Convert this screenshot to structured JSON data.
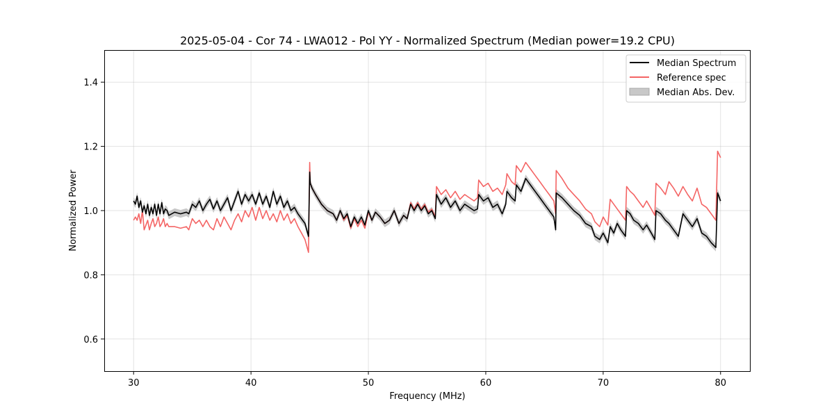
{
  "chart_data": {
    "type": "line",
    "title": "2025-05-04 - Cor 74 - LWA012 - Pol YY - Normalized Spectrum (Median power=19.2 CPU)",
    "xlabel": "Frequency (MHz)",
    "ylabel": "Normalized Power",
    "xlim": [
      27.5,
      82.5
    ],
    "ylim": [
      0.5,
      1.5
    ],
    "xticks": [
      30,
      40,
      50,
      60,
      70,
      80
    ],
    "yticks": [
      0.6,
      0.8,
      1.0,
      1.2,
      1.4
    ],
    "xtick_labels": [
      "30",
      "40",
      "50",
      "60",
      "70",
      "80"
    ],
    "ytick_labels": [
      "0.6",
      "0.8",
      "1.0",
      "1.2",
      "1.4"
    ],
    "grid": true,
    "legend_position": "top-right",
    "mad_halfwidth": 0.012,
    "series": [
      {
        "name": "Median Spectrum",
        "color": "#000000",
        "x": [
          30.0,
          30.15,
          30.3,
          30.45,
          30.6,
          30.75,
          30.9,
          31.05,
          31.2,
          31.35,
          31.5,
          31.65,
          31.8,
          31.95,
          32.1,
          32.25,
          32.4,
          32.55,
          32.7,
          32.85,
          33.0,
          33.5,
          34.0,
          34.5,
          34.7,
          35.0,
          35.3,
          35.6,
          35.9,
          36.2,
          36.5,
          36.8,
          37.1,
          37.4,
          37.7,
          38.0,
          38.3,
          38.6,
          38.9,
          39.2,
          39.5,
          39.8,
          40.1,
          40.4,
          40.7,
          41.0,
          41.3,
          41.6,
          41.9,
          42.2,
          42.5,
          42.8,
          43.1,
          43.4,
          43.7,
          44.0,
          44.3,
          44.6,
          44.9,
          45.0,
          45.05,
          45.2,
          45.5,
          46.0,
          46.5,
          47.0,
          47.3,
          47.6,
          47.9,
          48.2,
          48.5,
          48.8,
          49.1,
          49.4,
          49.7,
          50.0,
          50.3,
          50.6,
          51.0,
          51.4,
          51.8,
          52.2,
          52.6,
          53.0,
          53.3,
          53.6,
          53.9,
          54.2,
          54.5,
          54.8,
          55.1,
          55.4,
          55.7,
          55.8,
          56.2,
          56.6,
          57.0,
          57.4,
          57.8,
          58.2,
          58.6,
          59.0,
          59.3,
          59.4,
          59.8,
          60.2,
          60.6,
          61.0,
          61.4,
          61.7,
          61.8,
          62.2,
          62.5,
          62.6,
          63.0,
          63.4,
          63.8,
          64.2,
          64.6,
          65.0,
          65.4,
          65.8,
          65.95,
          66.0,
          66.5,
          67.0,
          67.5,
          68.0,
          68.5,
          69.0,
          69.3,
          69.7,
          70.0,
          70.4,
          70.6,
          70.9,
          71.2,
          71.5,
          71.9,
          72.0,
          72.3,
          72.6,
          73.0,
          73.4,
          73.7,
          74.1,
          74.4,
          74.5,
          74.9,
          75.3,
          75.6,
          76.0,
          76.4,
          76.8,
          77.2,
          77.6,
          78.0,
          78.4,
          78.8,
          79.2,
          79.6,
          79.75,
          80.0
        ],
        "values": [
          1.03,
          1.02,
          1.045,
          1.01,
          1.03,
          0.995,
          1.015,
          0.99,
          1.02,
          0.985,
          1.01,
          0.99,
          1.02,
          0.985,
          1.02,
          0.99,
          1.025,
          0.99,
          1.005,
          1.0,
          0.985,
          0.995,
          0.99,
          0.995,
          0.99,
          1.02,
          1.01,
          1.03,
          1.0,
          1.02,
          1.035,
          1.005,
          1.03,
          1.0,
          1.02,
          1.04,
          1.0,
          1.03,
          1.06,
          1.02,
          1.05,
          1.03,
          1.05,
          1.02,
          1.055,
          1.02,
          1.045,
          1.01,
          1.06,
          1.02,
          1.045,
          1.01,
          1.03,
          1.0,
          1.01,
          0.99,
          0.975,
          0.96,
          0.92,
          1.12,
          1.085,
          1.07,
          1.05,
          1.02,
          1.0,
          0.99,
          0.97,
          1.0,
          0.975,
          0.99,
          0.95,
          0.98,
          0.96,
          0.98,
          0.955,
          1.0,
          0.97,
          0.995,
          0.98,
          0.96,
          0.97,
          1.0,
          0.96,
          0.985,
          0.975,
          1.02,
          1.0,
          1.02,
          1.0,
          1.015,
          0.99,
          1.0,
          0.975,
          1.05,
          1.02,
          1.04,
          1.01,
          1.03,
          1.0,
          1.02,
          1.01,
          1.0,
          1.005,
          1.05,
          1.03,
          1.04,
          1.01,
          1.02,
          0.99,
          1.02,
          1.06,
          1.04,
          1.03,
          1.08,
          1.06,
          1.1,
          1.08,
          1.06,
          1.04,
          1.02,
          1.0,
          0.98,
          0.94,
          1.055,
          1.04,
          1.02,
          1.0,
          0.985,
          0.96,
          0.95,
          0.92,
          0.91,
          0.93,
          0.9,
          0.95,
          0.93,
          0.96,
          0.94,
          0.92,
          1.0,
          0.99,
          0.97,
          0.96,
          0.94,
          0.955,
          0.93,
          0.91,
          1.0,
          0.99,
          0.97,
          0.96,
          0.94,
          0.92,
          0.99,
          0.97,
          0.95,
          0.975,
          0.93,
          0.92,
          0.9,
          0.885,
          1.055,
          1.03
        ]
      },
      {
        "name": "Reference spec",
        "color": "#f46464",
        "x": [
          30.0,
          30.15,
          30.3,
          30.45,
          30.6,
          30.75,
          30.9,
          31.05,
          31.2,
          31.35,
          31.5,
          31.65,
          31.8,
          31.95,
          32.1,
          32.25,
          32.4,
          32.55,
          32.7,
          32.85,
          33.0,
          33.5,
          34.0,
          34.5,
          34.7,
          35.0,
          35.3,
          35.6,
          35.9,
          36.2,
          36.5,
          36.8,
          37.1,
          37.4,
          37.7,
          38.0,
          38.3,
          38.6,
          38.9,
          39.2,
          39.5,
          39.8,
          40.1,
          40.4,
          40.7,
          41.0,
          41.3,
          41.6,
          41.9,
          42.2,
          42.5,
          42.8,
          43.1,
          43.4,
          43.7,
          44.0,
          44.3,
          44.6,
          44.9,
          45.0,
          45.05,
          45.2,
          45.5,
          46.0,
          46.5,
          47.0,
          47.3,
          47.6,
          47.9,
          48.2,
          48.5,
          48.8,
          49.1,
          49.4,
          49.7,
          50.0,
          50.3,
          50.6,
          51.0,
          51.4,
          51.8,
          52.2,
          52.6,
          53.0,
          53.3,
          53.6,
          53.9,
          54.2,
          54.5,
          54.8,
          55.1,
          55.4,
          55.7,
          55.8,
          56.2,
          56.6,
          57.0,
          57.4,
          57.8,
          58.2,
          58.6,
          59.0,
          59.3,
          59.4,
          59.8,
          60.2,
          60.6,
          61.0,
          61.4,
          61.7,
          61.8,
          62.2,
          62.5,
          62.6,
          63.0,
          63.4,
          63.8,
          64.2,
          64.6,
          65.0,
          65.4,
          65.8,
          65.95,
          66.0,
          66.5,
          67.0,
          67.5,
          68.0,
          68.5,
          69.0,
          69.3,
          69.7,
          70.0,
          70.4,
          70.6,
          70.9,
          71.2,
          71.5,
          71.9,
          72.0,
          72.3,
          72.6,
          73.0,
          73.4,
          73.7,
          74.1,
          74.4,
          74.5,
          74.9,
          75.3,
          75.6,
          76.0,
          76.4,
          76.8,
          77.2,
          77.6,
          78.0,
          78.4,
          78.8,
          79.2,
          79.6,
          79.75,
          80.0
        ],
        "values": [
          0.97,
          0.98,
          0.97,
          0.99,
          0.96,
          1.0,
          0.94,
          0.955,
          0.97,
          0.94,
          0.96,
          0.975,
          0.95,
          0.96,
          0.98,
          0.95,
          0.96,
          0.975,
          0.95,
          0.96,
          0.95,
          0.95,
          0.945,
          0.95,
          0.94,
          0.975,
          0.96,
          0.97,
          0.95,
          0.97,
          0.95,
          0.94,
          0.975,
          0.95,
          0.98,
          0.96,
          0.94,
          0.97,
          0.99,
          0.965,
          1.0,
          0.98,
          1.01,
          0.97,
          1.01,
          0.975,
          1.0,
          0.97,
          0.99,
          0.965,
          1.0,
          0.97,
          0.99,
          0.96,
          0.975,
          0.95,
          0.93,
          0.91,
          0.87,
          1.15,
          1.085,
          1.07,
          1.05,
          1.02,
          1.0,
          0.99,
          0.97,
          1.0,
          0.97,
          0.985,
          0.945,
          0.975,
          0.95,
          0.97,
          0.945,
          0.995,
          0.97,
          0.995,
          0.98,
          0.96,
          0.97,
          1.0,
          0.96,
          0.985,
          0.975,
          1.025,
          1.005,
          1.025,
          1.005,
          1.02,
          0.995,
          1.005,
          0.98,
          1.075,
          1.05,
          1.065,
          1.04,
          1.06,
          1.035,
          1.05,
          1.04,
          1.03,
          1.04,
          1.095,
          1.075,
          1.085,
          1.06,
          1.07,
          1.05,
          1.08,
          1.115,
          1.09,
          1.08,
          1.14,
          1.12,
          1.15,
          1.13,
          1.11,
          1.09,
          1.07,
          1.05,
          1.03,
          0.99,
          1.125,
          1.1,
          1.07,
          1.05,
          1.03,
          1.005,
          0.99,
          0.965,
          0.95,
          0.98,
          0.955,
          1.035,
          1.02,
          1.005,
          0.99,
          0.97,
          1.075,
          1.06,
          1.05,
          1.03,
          1.01,
          1.03,
          1.005,
          0.985,
          1.085,
          1.07,
          1.05,
          1.09,
          1.07,
          1.045,
          1.075,
          1.05,
          1.03,
          1.07,
          1.02,
          1.01,
          0.99,
          0.97,
          1.185,
          1.165
        ]
      }
    ],
    "legend": [
      "Median Spectrum",
      "Reference spec",
      "Median Abs. Dev."
    ],
    "band_color": "#c8c8c8"
  }
}
